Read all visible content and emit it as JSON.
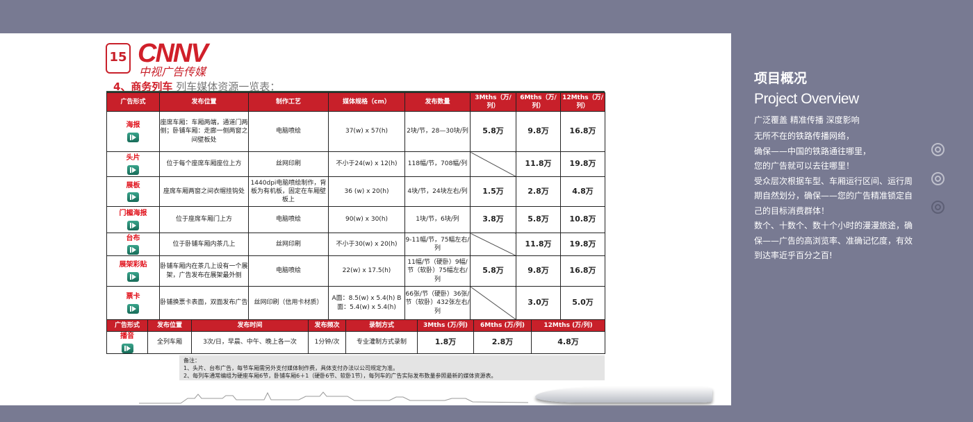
{
  "logo": {
    "badge": "15",
    "brand": "CNNV",
    "brand_cn": "中视广告传媒"
  },
  "title": {
    "prefix": "4、商务列车",
    "rest": " 列车媒体资源一览表："
  },
  "table1": {
    "headers": [
      "广告形式",
      "发布位置",
      "制作工艺",
      "媒体规格（cm）",
      "发布数量",
      "3Mths（万/列）",
      "6Mths（万/列）",
      "12Mths（万/列）"
    ],
    "rows": [
      {
        "name": "海报",
        "position": "座席车厢：车厢两端，通道门两侧；卧铺车厢：走廊一侧两窗之间壁板处",
        "craft": "电脑喷绘",
        "size": "37(w) x 57(h)",
        "qty": "2块/节，28—30块/列",
        "p3": "5.8万",
        "p6": "9.8万",
        "p12": "16.8万"
      },
      {
        "name": "头片",
        "position": "位于每个座席车厢座位上方",
        "craft": "丝网印刷",
        "size": "不小于24(w) x 12(h)",
        "qty": "118幅/节，708幅/列",
        "p3": "",
        "p6": "11.8万",
        "p12": "19.8万"
      },
      {
        "name": "展板",
        "position": "座席车厢两窗之间衣帽挂钩处",
        "craft": "1440dpi电脑喷绘制作，背板为有机板，固定在车厢壁板上",
        "size": "36 (w) x 20(h)",
        "qty": "4块/节，24块左右/列",
        "p3": "1.5万",
        "p6": "2.8万",
        "p12": "4.8万"
      },
      {
        "name": "门楣海报",
        "position": "位于座席车厢门上方",
        "craft": "电脑喷绘",
        "size": "90(w) x 30(h)",
        "qty": "1块/节，6块/列",
        "p3": "3.8万",
        "p6": "5.8万",
        "p12": "10.8万"
      },
      {
        "name": "台布",
        "position": "位于卧铺车厢内茶几上",
        "craft": "丝网印刷",
        "size": "不小于30(w) x 20(h)",
        "qty": "9-11幅/节，75幅左右/列",
        "p3": "",
        "p6": "11.8万",
        "p12": "19.8万"
      },
      {
        "name": "展架彩贴",
        "position": "卧铺车厢内在茶几上设有一个展架，广告发布在展架最外侧",
        "craft": "电脑喷绘",
        "size": "22(w) x 17.5(h)",
        "qty": "11幅/节（硬卧）9幅/节（软卧）75幅左右/列",
        "p3": "5.8万",
        "p6": "9.8万",
        "p12": "16.8万"
      },
      {
        "name": "票卡",
        "position": "卧铺换票卡表面，双面发布广告",
        "craft": "丝网印刷（信用卡材质）",
        "size": "A面：8.5(w) x 5.4(h) B面：5.4(w) x 5.4(h)",
        "qty": "66张/节（硬卧）36张/节（软卧）432张左右/列",
        "p3": "",
        "p6": "3.0万",
        "p12": "5.0万"
      }
    ]
  },
  "table2": {
    "headers": [
      "广告形式",
      "发布位置",
      "发布时间",
      "发布频次",
      "录制方式",
      "3Mths (万/列)",
      "6Mths (万/列)",
      "12Mths (万/列)"
    ],
    "row": {
      "name": "播音",
      "position": "全列车厢",
      "time": "3次/日，早晨、中午、晚上各一次",
      "freq": "1分钟/次",
      "method": "专业灌制方式录制",
      "p3": "1.8万",
      "p6": "2.8万",
      "p12": "4.8万"
    }
  },
  "notes": [
    "备注：",
    "1、头片、台布广告，每节车厢需另外支付媒体制作费，具体支付办法以公司规定为准。",
    "2、每列车通常编组为硬座车厢6节，卧铺车厢6＋1（硬卧6节、软卧1节），每列车的广告实际发布数量参照最新的媒体资源表。"
  ],
  "side": {
    "title_cn": "项目概况",
    "title_en": "Project Overview",
    "tagline": "广泛覆盖  精准传播  深度影响",
    "lines": [
      "无所不在的铁路传播网络，",
      "确保——中国的铁路通往哪里，",
      "您的广告就可以去往哪里！",
      "受众层次根据车型、车厢运行区间、运行周期自然划分，确保——您的广告精准锁定自己的目标消费群体！",
      "数个、十数个、数十个小时的漫漫旅途，确保——广告的高浏览率、准确记忆度，有效到达率近乎百分之百!"
    ]
  },
  "colors": {
    "accent": "#c8202a",
    "side_bg": "#787a92"
  }
}
